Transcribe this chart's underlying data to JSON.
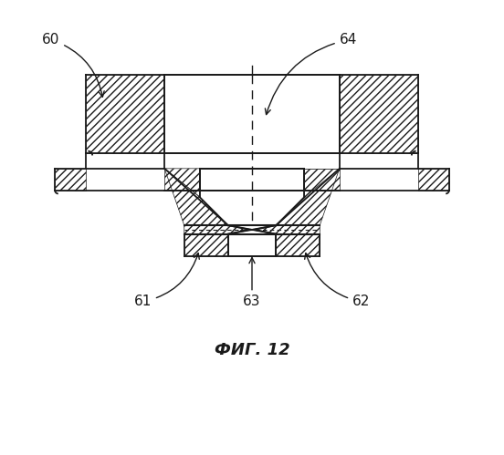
{
  "title": "ФИГ. 12",
  "bg_color": "#ffffff",
  "line_color": "#1a1a1a",
  "figsize": [
    5.52,
    4.99
  ],
  "dpi": 100
}
